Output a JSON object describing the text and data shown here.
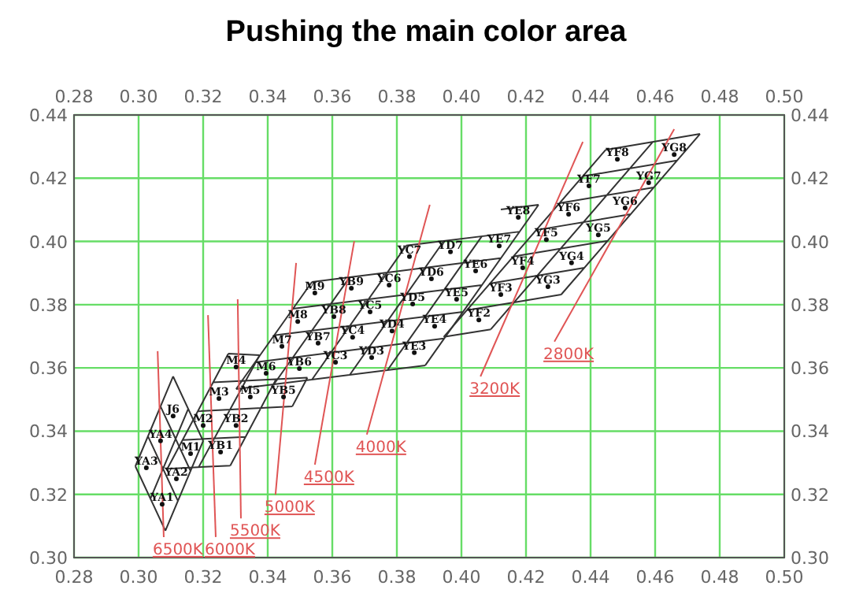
{
  "chart_data": {
    "type": "line",
    "title": "Pushing the main color area",
    "xlim": [
      0.28,
      0.5
    ],
    "xticks": [
      0.28,
      {
        "value": 0.3,
        "label": "0.30"
      },
      0.32,
      0.34,
      0.36,
      0.38,
      {
        "value": 0.4,
        "label": "0.40"
      },
      0.42,
      0.44,
      0.46,
      0.48,
      {
        "value": 0.5,
        "label": "0.50"
      }
    ],
    "x2lim": [
      0.28,
      0.5
    ],
    "x2ticks": [
      0.28,
      {
        "value": 0.3,
        "label": "0.30"
      },
      0.32,
      0.34,
      0.36,
      0.38,
      {
        "value": 0.4,
        "label": "0.40"
      },
      0.42,
      0.44,
      0.46,
      0.48,
      {
        "value": 0.5,
        "label": "0.50"
      }
    ],
    "ylim": [
      0.3,
      0.44
    ],
    "yticks": [
      {
        "value": 0.3,
        "label": "0.30"
      },
      0.32,
      0.34,
      0.36,
      0.38,
      {
        "value": 0.4,
        "label": "0.40"
      },
      0.42,
      0.44
    ],
    "y2lim": [
      0.3,
      0.44
    ],
    "y2ticks": [
      {
        "value": 0.3,
        "label": "0.30"
      },
      0.32,
      0.34,
      0.36,
      0.38,
      {
        "value": 0.4,
        "label": "0.40"
      },
      0.42,
      0.44
    ],
    "grid": true,
    "series": [
      {
        "color": "#333333",
        "x": [
          0.3083,
          0.32,
          null,
          0.3037,
          0.3154,
          null,
          0.299,
          0.3107,
          null,
          0.3083,
          0.299,
          null,
          0.3122,
          0.3029,
          null,
          0.3161,
          0.3068,
          null,
          0.32,
          0.3107
        ],
        "values": [
          0.3085,
          0.3369,
          null,
          0.3187,
          0.3471,
          null,
          0.3289,
          0.3573,
          null,
          0.3085,
          0.3289,
          null,
          0.3179,
          0.3384,
          null,
          0.3274,
          0.3478,
          null,
          0.3369,
          0.3573
        ]
      },
      {
        "color": "#333333",
        "x": [
          0.3089,
          0.3278,
          null,
          0.3186,
          0.3375,
          null,
          0.3284,
          0.3426,
          null,
          0.3476,
          0.3523,
          null,
          0.3089,
          0.3284,
          null,
          0.3136,
          0.3331,
          null,
          0.3183,
          0.3476,
          null,
          0.323,
          0.3523,
          null,
          0.3278,
          0.3375
        ],
        "values": [
          0.3281,
          0.3645,
          null,
          0.3286,
          0.364,
          null,
          0.3291,
          0.3564,
          null,
          0.3478,
          0.3569,
          null,
          0.3281,
          0.3291,
          null,
          0.3372,
          0.3382,
          null,
          0.3463,
          0.3478,
          null,
          0.3554,
          0.3569,
          null,
          0.3645,
          0.364
        ]
      },
      {
        "color": "#333333",
        "x": [
          0.3302,
          0.3537,
          null,
          0.3419,
          0.3654,
          null,
          0.3537,
          0.3829,
          null,
          0.3654,
          0.3946,
          null,
          0.3771,
          0.4063,
          null,
          0.3888,
          0.4239,
          null,
          0.3302,
          0.3888,
          null,
          0.3361,
          0.3946,
          null,
          0.342,
          0.4005,
          null,
          0.3478,
          0.4063,
          null,
          0.3537,
          0.4122,
          null,
          0.3829,
          0.4181,
          null,
          0.4122,
          0.4239
        ],
        "values": [
          0.3533,
          0.3872,
          null,
          0.3548,
          0.3887,
          null,
          0.3563,
          0.3987,
          null,
          0.3578,
          0.4002,
          null,
          0.3593,
          0.4016,
          null,
          0.3608,
          0.4116,
          null,
          0.3533,
          0.3608,
          null,
          0.3618,
          0.3693,
          null,
          0.3703,
          0.3777,
          null,
          0.3787,
          0.3862,
          null,
          0.3872,
          0.3947,
          null,
          0.3987,
          0.4031,
          null,
          0.4101,
          0.4116
        ]
      },
      {
        "color": "#333333",
        "x": [
          0.3945,
          0.4447,
          null,
          0.4091,
          0.4593,
          null,
          0.4309,
          0.4739,
          null,
          0.3945,
          0.4091,
          null,
          0.4016,
          0.4309,
          null,
          0.4088,
          0.4381,
          null,
          0.416,
          0.4453,
          null,
          0.4232,
          0.4524,
          null,
          0.4303,
          0.4596,
          null,
          0.4375,
          0.4668,
          null,
          0.4447,
          0.4739
        ],
        "values": [
          0.3698,
          0.429,
          null,
          0.3722,
          0.4315,
          null,
          0.3832,
          0.434,
          null,
          0.3698,
          0.3722,
          null,
          0.3782,
          0.3832,
          null,
          0.3867,
          0.3917,
          null,
          0.3952,
          0.4002,
          null,
          0.4036,
          0.4086,
          null,
          0.4121,
          0.4171,
          null,
          0.4206,
          0.4256,
          null,
          0.429,
          0.434
        ]
      },
      {
        "name": "6500K",
        "color": "#e05555",
        "x": [
          0.3059,
          0.3078
        ],
        "values": [
          0.3653,
          0.3065
        ]
      },
      {
        "name": "6000K",
        "color": "#e05555",
        "x": [
          0.3215,
          0.3239
        ],
        "values": [
          0.3767,
          0.3065
        ]
      },
      {
        "name": "5500K",
        "color": "#e05555",
        "x": [
          0.3307,
          0.3317
        ],
        "values": [
          0.3817,
          0.3124
        ]
      },
      {
        "name": "5000K",
        "color": "#e05555",
        "x": [
          0.3488,
          0.3424
        ],
        "values": [
          0.3932,
          0.3199
        ]
      },
      {
        "name": "4500K",
        "color": "#e05555",
        "x": [
          0.3668,
          0.3546
        ],
        "values": [
          0.4001,
          0.3294
        ]
      },
      {
        "name": "4000K",
        "color": "#e05555",
        "x": [
          0.3902,
          0.3707
        ],
        "values": [
          0.4116,
          0.3389
        ]
      },
      {
        "name": "3200K",
        "color": "#e05555",
        "x": [
          0.4376,
          0.4059
        ],
        "values": [
          0.4315,
          0.3573
        ]
      },
      {
        "name": "2800K",
        "color": "#e05555",
        "x": [
          0.4659,
          0.4288
        ],
        "values": [
          0.4355,
          0.3683
        ]
      },
      {
        "type": "scatter",
        "marker": "circle",
        "color": "#111111",
        "x": [
          0.3073,
          0.3117,
          0.3024,
          0.3068,
          0.3107,
          0.3161,
          0.32,
          0.3249,
          0.3302,
          0.3254,
          0.3302,
          0.3346,
          0.3449,
          0.3395,
          0.3498,
          0.3444,
          0.3556,
          0.3493,
          0.3605,
          0.3546,
          0.3659,
          0.361,
          0.3663,
          0.3717,
          0.3776,
          0.3839,
          0.3722,
          0.3785,
          0.3849,
          0.3907,
          0.3966,
          0.3854,
          0.3917,
          0.3985,
          0.4044,
          0.4117,
          0.4176,
          0.4054,
          0.4122,
          0.419,
          0.4263,
          0.4332,
          0.4395,
          0.4483,
          0.4268,
          0.4341,
          0.4424,
          0.4507,
          0.458,
          0.4659
        ],
        "values": [
          0.3169,
          0.3249,
          0.3284,
          0.3369,
          0.3448,
          0.3329,
          0.3418,
          0.3503,
          0.3603,
          0.3334,
          0.3418,
          0.3508,
          0.3508,
          0.3583,
          0.3598,
          0.3668,
          0.3678,
          0.3747,
          0.3762,
          0.3837,
          0.3852,
          0.3618,
          0.3697,
          0.3777,
          0.3862,
          0.3952,
          0.3633,
          0.3717,
          0.3802,
          0.3882,
          0.3967,
          0.3648,
          0.3732,
          0.3817,
          0.3907,
          0.3986,
          0.4076,
          0.3752,
          0.3832,
          0.3917,
          0.4006,
          0.4086,
          0.4176,
          0.426,
          0.3857,
          0.3932,
          0.4021,
          0.4106,
          0.4186,
          0.4275
        ],
        "value_labels": [
          "YA1",
          "YA2",
          "YA3",
          "YA4",
          "J6",
          "M1",
          "M2",
          "M3",
          "M4",
          "YB1",
          "YB2",
          "M5",
          "YB5",
          "M6",
          "YB6",
          "M7",
          "YB7",
          "M8",
          "YB8",
          "M9",
          "YB9",
          "YC3",
          "YC4",
          "YC5",
          "YC6",
          "YC7",
          "YD3",
          "YD4",
          "YD5",
          "YD6",
          "YD7",
          "YE3",
          "YE4",
          "YE5",
          "YE6",
          "YE7",
          "YE8",
          "YF2",
          "YF3",
          "YF4",
          "YF5",
          "YF6",
          "YF7",
          "YF8",
          "YG3",
          "YG4",
          "YG5",
          "YG6",
          "YG7",
          "YG8"
        ]
      }
    ]
  }
}
